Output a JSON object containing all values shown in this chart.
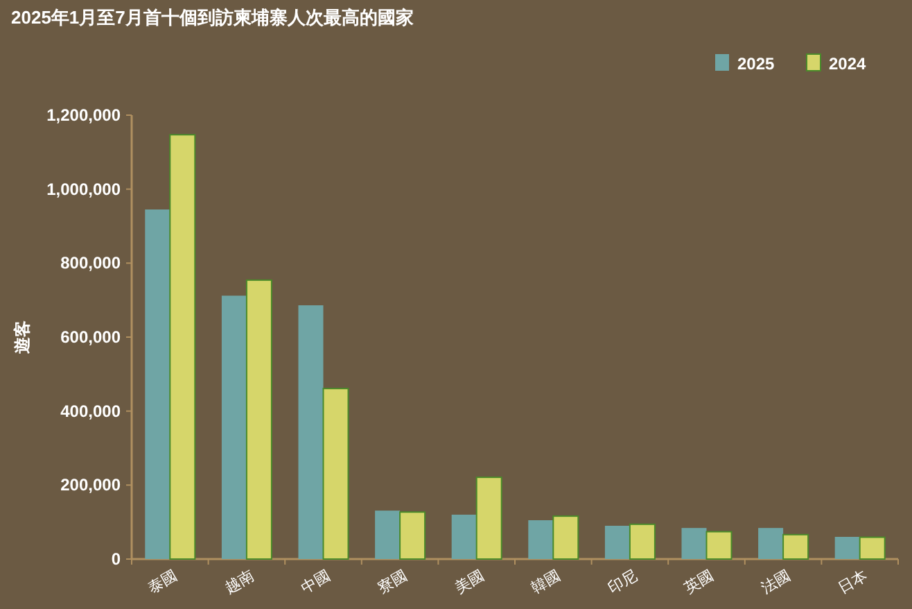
{
  "chart_data": {
    "type": "bar",
    "title": "2025年1月至7月首十個到訪柬埔寨人次最高的國家",
    "ylabel": "遊客",
    "categories": [
      "泰國",
      "越南",
      "中國",
      "寮國",
      "美國",
      "韓國",
      "印尼",
      "英國",
      "法國",
      "日本"
    ],
    "series": [
      {
        "name": "2025",
        "color": "#6fa5a5",
        "values": [
          945000,
          712000,
          686000,
          131000,
          120000,
          105000,
          90000,
          84000,
          84000,
          60000
        ]
      },
      {
        "name": "2024",
        "color": "#d6d66a",
        "values": [
          1147000,
          754000,
          461000,
          127000,
          221000,
          116000,
          94000,
          74000,
          66000,
          59000
        ]
      }
    ],
    "ylim": [
      0,
      1200000
    ],
    "yticks": [
      {
        "value": 0,
        "label": "0"
      },
      {
        "value": 200000,
        "label": "200,000"
      },
      {
        "value": 400000,
        "label": "400,000"
      },
      {
        "value": 600000,
        "label": "600,000"
      },
      {
        "value": 800000,
        "label": "800,000"
      },
      {
        "value": 1000000,
        "label": "1,000,000"
      },
      {
        "value": 1200000,
        "label": "1,200,000"
      }
    ],
    "legend": "top right",
    "grid": false
  }
}
